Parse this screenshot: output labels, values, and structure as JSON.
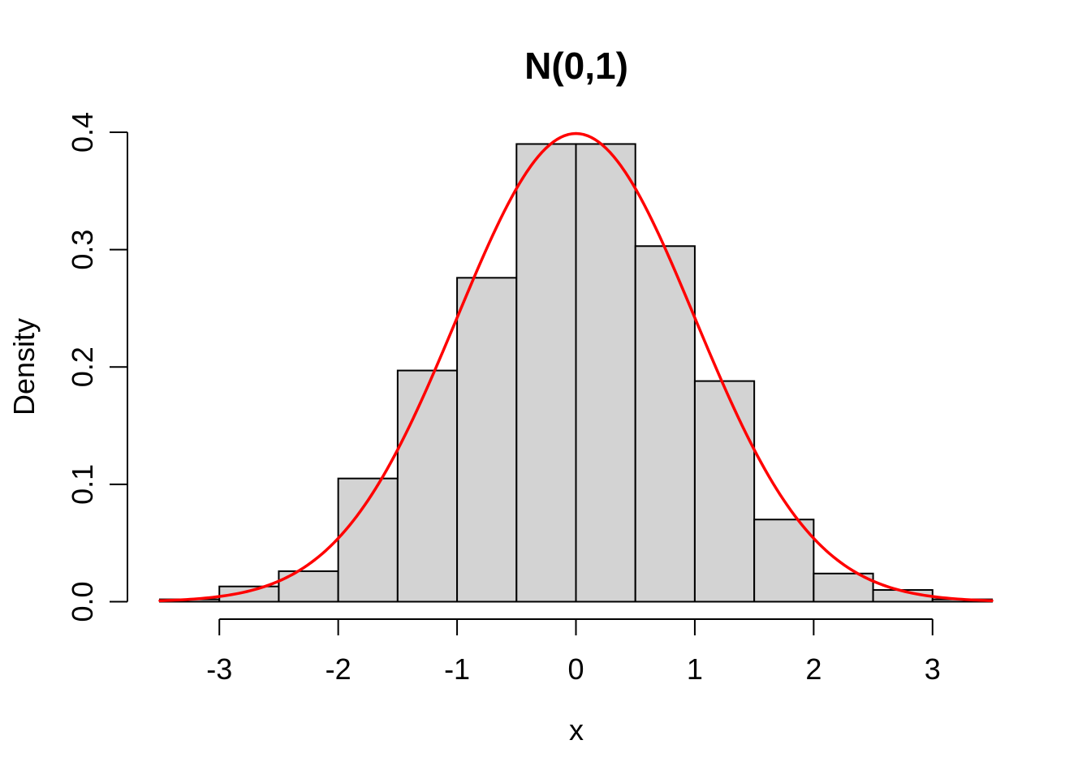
{
  "figure": {
    "background": "#FFFFFF"
  },
  "chart_data": {
    "type": "bar",
    "subtype": "histogram-with-density-overlay",
    "title": "N(0,1)",
    "xlabel": "x",
    "ylabel": "Density",
    "grid": false,
    "legend": null,
    "xlim": [
      -3.5,
      3.5
    ],
    "ylim": [
      0,
      0.4
    ],
    "x_ticks": [
      -3,
      -2,
      -1,
      0,
      1,
      2,
      3
    ],
    "x_tick_labels": [
      "-3",
      "-2",
      "-1",
      "0",
      "1",
      "2",
      "3"
    ],
    "y_ticks": [
      0.0,
      0.1,
      0.2,
      0.3,
      0.4
    ],
    "y_tick_labels": [
      "0.0",
      "0.1",
      "0.2",
      "0.3",
      "0.4"
    ],
    "bin_width": 0.5,
    "bins": [
      {
        "x0": -3.5,
        "x1": -3.0,
        "density": 0.002
      },
      {
        "x0": -3.0,
        "x1": -2.5,
        "density": 0.013
      },
      {
        "x0": -2.5,
        "x1": -2.0,
        "density": 0.026
      },
      {
        "x0": -2.0,
        "x1": -1.5,
        "density": 0.105
      },
      {
        "x0": -1.5,
        "x1": -1.0,
        "density": 0.197
      },
      {
        "x0": -1.0,
        "x1": -0.5,
        "density": 0.276
      },
      {
        "x0": -0.5,
        "x1": 0.0,
        "density": 0.39
      },
      {
        "x0": 0.0,
        "x1": 0.5,
        "density": 0.39
      },
      {
        "x0": 0.5,
        "x1": 1.0,
        "density": 0.303
      },
      {
        "x0": 1.0,
        "x1": 1.5,
        "density": 0.188
      },
      {
        "x0": 1.5,
        "x1": 2.0,
        "density": 0.07
      },
      {
        "x0": 2.0,
        "x1": 2.5,
        "density": 0.024
      },
      {
        "x0": 2.5,
        "x1": 3.0,
        "density": 0.01
      },
      {
        "x0": 3.0,
        "x1": 3.5,
        "density": 0.002
      }
    ],
    "curve": {
      "name": "standard-normal-density",
      "mean": 0,
      "sd": 1,
      "x_range": [
        -3.5,
        3.5
      ],
      "peak_density": 0.3989
    },
    "colors": {
      "bar_fill": "#D3D3D3",
      "bar_border": "#000000",
      "curve": "#FF0000",
      "axis": "#000000",
      "text": "#000000"
    }
  }
}
